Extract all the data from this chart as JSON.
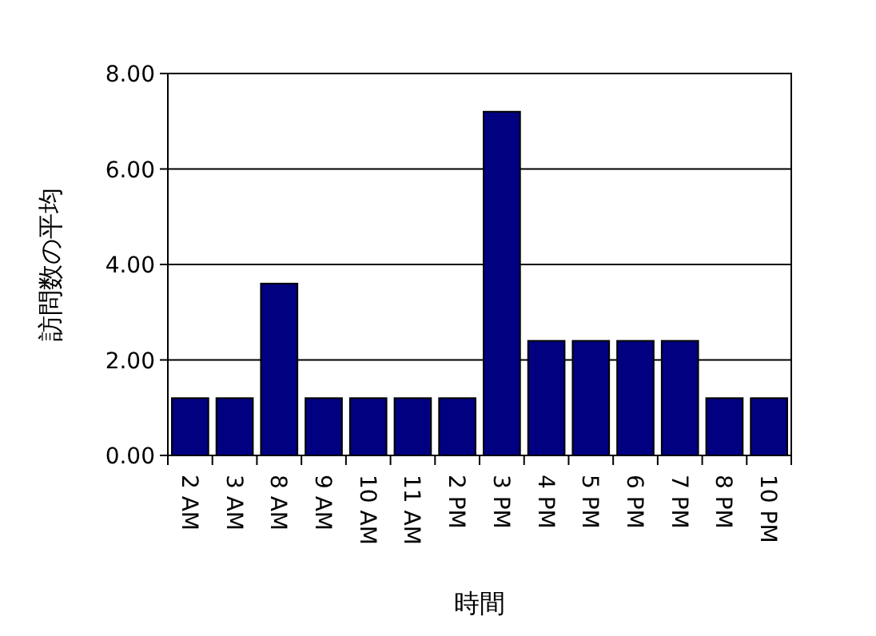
{
  "chart_data": {
    "type": "bar",
    "xlabel": "時間",
    "ylabel": "訪問数の平均",
    "categories": [
      "2 AM",
      "3 AM",
      "8 AM",
      "9 AM",
      "10 AM",
      "11 AM",
      "2 PM",
      "3 PM",
      "4 PM",
      "5 PM",
      "6 PM",
      "7 PM",
      "8 PM",
      "10 PM"
    ],
    "values": [
      1.2,
      1.2,
      3.6,
      1.2,
      1.2,
      1.2,
      1.2,
      7.2,
      2.4,
      2.4,
      2.4,
      2.4,
      1.2,
      1.2
    ],
    "color": "#000080",
    "ylim": [
      0,
      8
    ],
    "yticks": [
      {
        "value": 0,
        "label": "0.00"
      },
      {
        "value": 2,
        "label": "2.00"
      },
      {
        "value": 4,
        "label": "4.00"
      },
      {
        "value": 6,
        "label": "6.00"
      },
      {
        "value": 8,
        "label": "8.00"
      }
    ],
    "grid": "y"
  }
}
